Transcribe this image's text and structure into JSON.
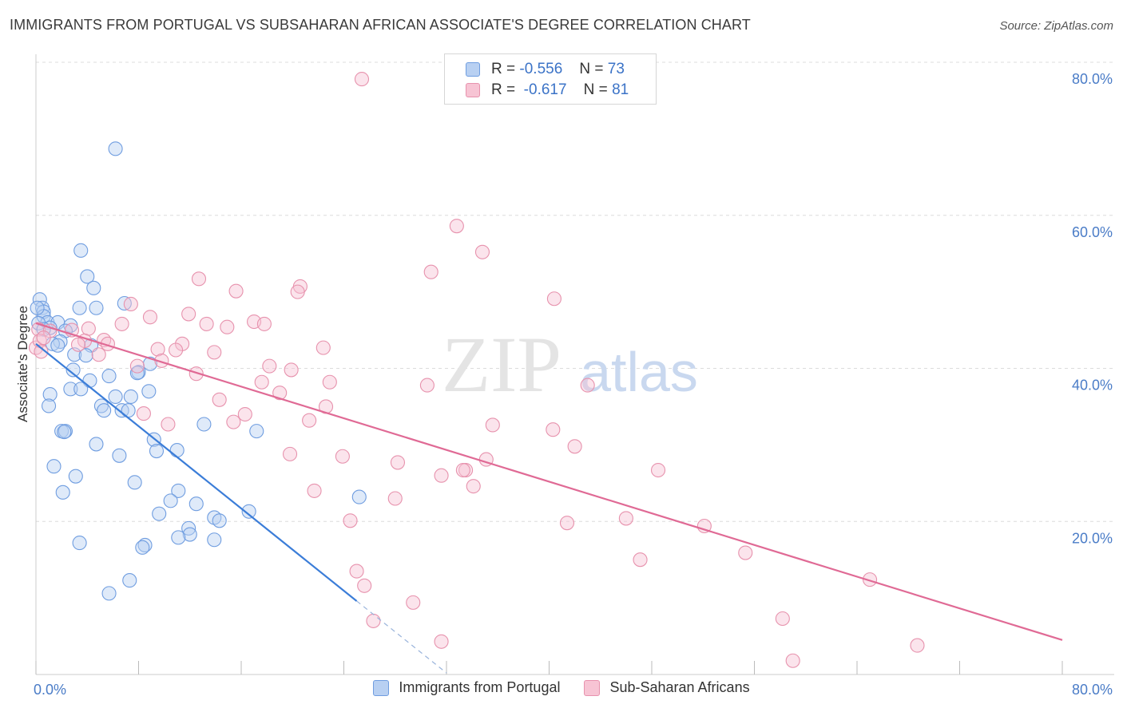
{
  "header": {
    "title": "IMMIGRANTS FROM PORTUGAL VS SUBSAHARAN AFRICAN ASSOCIATE'S DEGREE CORRELATION CHART",
    "source": "Source: ZipAtlas.com"
  },
  "watermark": {
    "zip": "ZIP",
    "atlas": "atlas"
  },
  "legend": {
    "rows": [
      {
        "r_label": "R =",
        "r_value": "-0.556",
        "n_label": "N =",
        "n_value": "73",
        "color": "#b8d0f2",
        "border": "#6f9de0"
      },
      {
        "r_label": "R =",
        "r_value": "-0.617",
        "n_label": "N =",
        "n_value": "81",
        "color": "#f7c4d4",
        "border": "#e792ad"
      }
    ]
  },
  "bottom_legend": [
    {
      "label": "Immigrants from Portugal",
      "color": "#b8d0f2",
      "border": "#6f9de0"
    },
    {
      "label": "Sub-Saharan Africans",
      "color": "#f7c4d4",
      "border": "#e792ad"
    }
  ],
  "chart_data": {
    "type": "scatter",
    "xlabel": "",
    "ylabel": "Associate's Degree",
    "xlim": [
      0,
      80
    ],
    "ylim": [
      0,
      80
    ],
    "x_tick_labels": [
      "0.0%",
      "80.0%"
    ],
    "y_ticks": [
      20,
      40,
      60,
      80
    ],
    "y_tick_labels": [
      "20.0%",
      "40.0%",
      "60.0%",
      "80.0%"
    ],
    "grid": true,
    "colors": {
      "blue": "#3b7dd8",
      "pink": "#e06a95",
      "blue_fill": "#b8d0f2",
      "pink_fill": "#f7c4d4"
    },
    "series": [
      {
        "name": "Immigrants from Portugal",
        "color": "#3b7dd8",
        "points": [
          [
            6.2,
            68.7
          ],
          [
            3.5,
            55.4
          ],
          [
            4.0,
            52.0
          ],
          [
            4.5,
            50.5
          ],
          [
            0.3,
            49.0
          ],
          [
            6.9,
            48.5
          ],
          [
            0.5,
            47.9
          ],
          [
            3.4,
            47.9
          ],
          [
            4.7,
            47.9
          ],
          [
            0.6,
            47.4
          ],
          [
            0.6,
            46.8
          ],
          [
            0.9,
            46.0
          ],
          [
            1.7,
            46.0
          ],
          [
            0.2,
            45.9
          ],
          [
            2.7,
            45.6
          ],
          [
            1.1,
            45.3
          ],
          [
            0.6,
            45.1
          ],
          [
            2.3,
            44.9
          ],
          [
            1.9,
            43.5
          ],
          [
            1.3,
            43.2
          ],
          [
            1.7,
            43.0
          ],
          [
            4.3,
            43.0
          ],
          [
            3.0,
            41.8
          ],
          [
            3.9,
            41.7
          ],
          [
            8.9,
            40.6
          ],
          [
            2.9,
            39.8
          ],
          [
            8.0,
            39.5
          ],
          [
            7.9,
            39.4
          ],
          [
            5.7,
            39.0
          ],
          [
            4.2,
            38.4
          ],
          [
            2.7,
            37.3
          ],
          [
            3.5,
            37.3
          ],
          [
            8.8,
            37.0
          ],
          [
            1.1,
            36.6
          ],
          [
            6.2,
            36.3
          ],
          [
            7.4,
            36.3
          ],
          [
            1.0,
            35.1
          ],
          [
            5.1,
            35.1
          ],
          [
            5.3,
            34.5
          ],
          [
            6.7,
            34.5
          ],
          [
            7.2,
            34.5
          ],
          [
            13.1,
            32.7
          ],
          [
            17.2,
            31.8
          ],
          [
            2.0,
            31.8
          ],
          [
            2.3,
            31.8
          ],
          [
            2.2,
            31.7
          ],
          [
            9.2,
            30.7
          ],
          [
            4.7,
            30.1
          ],
          [
            11.0,
            29.3
          ],
          [
            9.4,
            29.2
          ],
          [
            6.5,
            28.6
          ],
          [
            1.4,
            27.2
          ],
          [
            3.1,
            25.9
          ],
          [
            7.7,
            25.1
          ],
          [
            11.1,
            24.0
          ],
          [
            2.1,
            23.8
          ],
          [
            25.2,
            23.2
          ],
          [
            10.5,
            22.7
          ],
          [
            12.5,
            22.3
          ],
          [
            16.6,
            21.3
          ],
          [
            9.6,
            21.0
          ],
          [
            13.9,
            20.5
          ],
          [
            14.3,
            20.1
          ],
          [
            11.9,
            19.1
          ],
          [
            12.0,
            18.3
          ],
          [
            11.1,
            17.9
          ],
          [
            13.9,
            17.6
          ],
          [
            3.4,
            17.2
          ],
          [
            8.5,
            16.9
          ],
          [
            8.3,
            16.6
          ],
          [
            7.3,
            12.3
          ],
          [
            5.7,
            10.6
          ],
          [
            0.1,
            47.9
          ]
        ],
        "trend": {
          "x": [
            0,
            25
          ],
          "y": [
            43.2,
            9.6
          ]
        },
        "trend_extension": {
          "x": [
            25,
            32
          ],
          "y": [
            9.6,
            0.2
          ]
        }
      },
      {
        "name": "Sub-Saharan Africans",
        "color": "#e06a95",
        "points": [
          [
            25.4,
            77.8
          ],
          [
            32.8,
            58.6
          ],
          [
            34.8,
            55.2
          ],
          [
            30.8,
            52.6
          ],
          [
            12.7,
            51.7
          ],
          [
            15.6,
            50.1
          ],
          [
            20.6,
            50.7
          ],
          [
            20.4,
            50.0
          ],
          [
            40.4,
            49.1
          ],
          [
            7.4,
            48.4
          ],
          [
            11.9,
            47.1
          ],
          [
            8.9,
            46.7
          ],
          [
            17.0,
            46.1
          ],
          [
            17.8,
            45.8
          ],
          [
            13.3,
            45.8
          ],
          [
            6.7,
            45.8
          ],
          [
            14.9,
            45.4
          ],
          [
            4.1,
            45.2
          ],
          [
            2.8,
            45.0
          ],
          [
            0.2,
            45.1
          ],
          [
            1.1,
            44.9
          ],
          [
            3.8,
            43.6
          ],
          [
            5.3,
            43.7
          ],
          [
            5.6,
            43.2
          ],
          [
            3.3,
            43.1
          ],
          [
            11.4,
            43.2
          ],
          [
            9.5,
            42.5
          ],
          [
            22.4,
            42.7
          ],
          [
            10.9,
            42.4
          ],
          [
            13.9,
            42.1
          ],
          [
            4.9,
            41.8
          ],
          [
            0.0,
            42.7
          ],
          [
            9.8,
            41.0
          ],
          [
            7.9,
            40.3
          ],
          [
            18.2,
            40.3
          ],
          [
            19.9,
            39.8
          ],
          [
            12.5,
            39.3
          ],
          [
            17.6,
            38.2
          ],
          [
            22.9,
            38.2
          ],
          [
            30.5,
            37.8
          ],
          [
            43.0,
            37.8
          ],
          [
            19.0,
            36.8
          ],
          [
            14.3,
            35.9
          ],
          [
            22.6,
            35.0
          ],
          [
            8.4,
            34.1
          ],
          [
            16.3,
            34.0
          ],
          [
            21.3,
            33.2
          ],
          [
            15.4,
            33.0
          ],
          [
            10.3,
            32.7
          ],
          [
            35.6,
            32.6
          ],
          [
            40.3,
            32.0
          ],
          [
            42.0,
            29.8
          ],
          [
            19.8,
            28.8
          ],
          [
            23.9,
            28.5
          ],
          [
            35.1,
            28.1
          ],
          [
            28.2,
            27.7
          ],
          [
            33.5,
            26.7
          ],
          [
            33.3,
            26.7
          ],
          [
            48.5,
            26.7
          ],
          [
            31.6,
            26.0
          ],
          [
            34.1,
            24.6
          ],
          [
            21.7,
            24.0
          ],
          [
            28.0,
            23.0
          ],
          [
            24.5,
            20.1
          ],
          [
            46.0,
            20.4
          ],
          [
            41.4,
            19.8
          ],
          [
            52.1,
            19.4
          ],
          [
            55.3,
            15.9
          ],
          [
            47.1,
            15.0
          ],
          [
            25.0,
            13.5
          ],
          [
            65.0,
            12.4
          ],
          [
            25.6,
            11.6
          ],
          [
            29.4,
            9.4
          ],
          [
            26.3,
            7.0
          ],
          [
            58.2,
            7.3
          ],
          [
            31.6,
            4.3
          ],
          [
            68.7,
            3.8
          ],
          [
            59.0,
            1.8
          ],
          [
            0.3,
            43.6
          ],
          [
            0.4,
            42.2
          ],
          [
            0.6,
            44.0
          ]
        ],
        "trend": {
          "x": [
            0,
            80
          ],
          "y": [
            45.9,
            4.5
          ]
        }
      }
    ]
  }
}
